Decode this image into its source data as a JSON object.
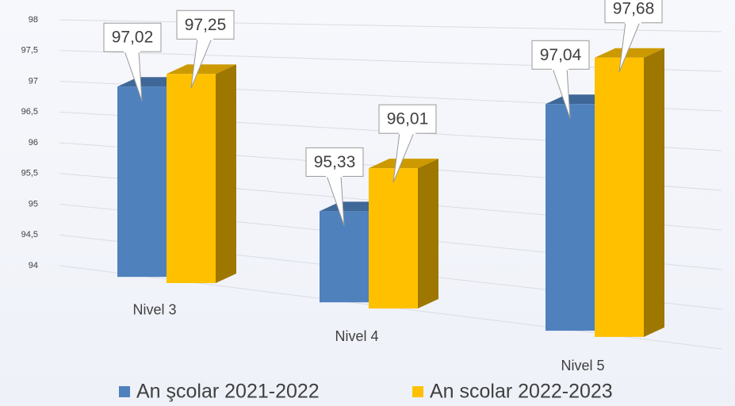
{
  "chart_data": {
    "type": "bar3d",
    "categories": [
      "Nivel 3",
      "Nivel 4",
      "Nivel 5"
    ],
    "series": [
      {
        "name": "An şcolar 2021-2022",
        "color": "#4f81bd",
        "values": [
          97.02,
          95.33,
          97.04
        ],
        "value_labels": [
          "97,02",
          "95,33",
          "97,04"
        ]
      },
      {
        "name": "An scolar 2022-2023",
        "color": "#ffc000",
        "values": [
          97.25,
          96.01,
          97.68
        ],
        "value_labels": [
          "97,25",
          "96,01",
          "97,68"
        ]
      }
    ],
    "ylim": [
      94,
      98
    ],
    "yticks": [
      94,
      {
        "value": 94.5,
        "label": "94,5"
      },
      95,
      {
        "value": 95.5,
        "label": "95,5"
      },
      96,
      {
        "value": 96.5,
        "label": "96,5"
      },
      97,
      {
        "value": 97.5,
        "label": "97,5"
      },
      98
    ],
    "grid": true,
    "legend": "bottom"
  }
}
